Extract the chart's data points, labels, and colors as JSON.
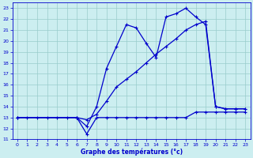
{
  "xlabel": "Graphe des températures (°c)",
  "xlim": [
    -0.5,
    23.5
  ],
  "ylim": [
    11,
    23.5
  ],
  "yticks": [
    11,
    12,
    13,
    14,
    15,
    16,
    17,
    18,
    19,
    20,
    21,
    22,
    23
  ],
  "xticks": [
    0,
    1,
    2,
    3,
    4,
    5,
    6,
    7,
    8,
    9,
    10,
    11,
    12,
    13,
    14,
    15,
    16,
    17,
    18,
    19,
    20,
    21,
    22,
    23
  ],
  "bg_color": "#cceef0",
  "line_color": "#0000cc",
  "grid_color": "#99cccc",
  "line1_x": [
    0,
    1,
    2,
    3,
    4,
    5,
    6,
    7,
    8,
    9,
    10,
    11,
    12,
    13,
    14,
    15,
    16,
    17,
    18,
    19,
    20,
    21,
    22,
    23
  ],
  "line1_y": [
    13,
    13,
    13,
    13,
    13,
    13,
    13,
    11.5,
    13,
    13,
    13,
    13,
    13,
    13,
    13,
    13,
    13,
    13,
    13.5,
    13.5,
    13.5,
    13.5,
    13.5,
    13.5
  ],
  "line2_x": [
    0,
    6,
    7,
    8,
    9,
    10,
    11,
    12,
    13,
    14,
    15,
    16,
    17,
    18,
    19,
    20,
    21,
    22,
    23
  ],
  "line2_y": [
    13,
    13,
    12.2,
    14.0,
    17.5,
    19.5,
    21.5,
    21.2,
    19.8,
    18.5,
    22.2,
    22.5,
    23.0,
    22.2,
    21.5,
    14.0,
    13.8,
    13.8,
    13.8
  ],
  "line3_x": [
    0,
    6,
    7,
    8,
    9,
    10,
    11,
    12,
    13,
    14,
    15,
    16,
    17,
    18,
    19,
    20,
    21,
    22,
    23
  ],
  "line3_y": [
    13,
    13,
    12.8,
    13.3,
    14.5,
    15.8,
    16.5,
    17.2,
    18.0,
    18.8,
    19.5,
    20.2,
    21.0,
    21.5,
    21.8,
    14.0,
    13.8,
    13.8,
    13.8
  ]
}
